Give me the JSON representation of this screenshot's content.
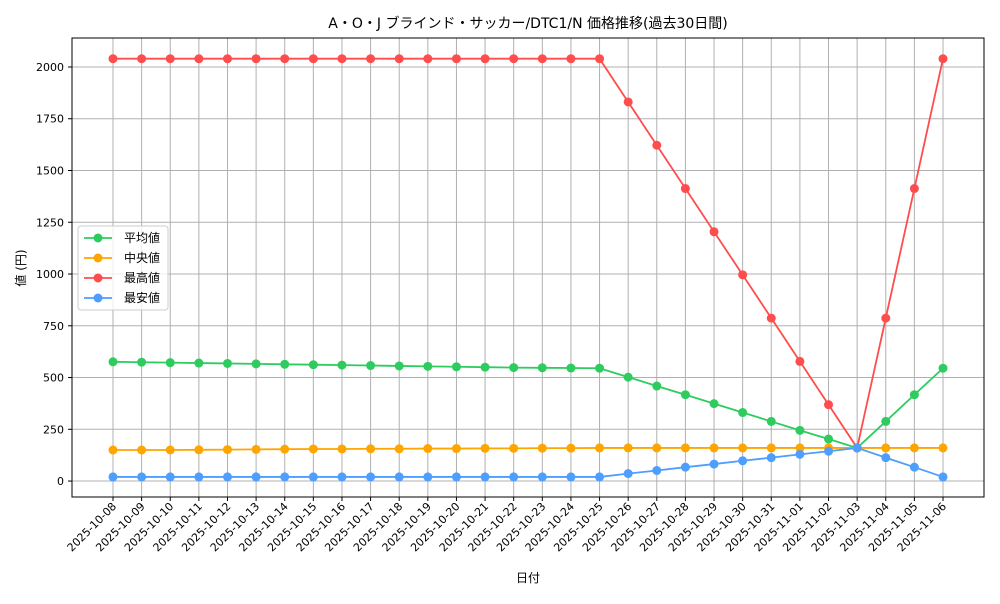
{
  "chart_data": {
    "type": "line",
    "title": "A・O・J ブラインド・サッカー/DTC1/N 価格推移(過去30日間)",
    "xlabel": "日付",
    "ylabel": "値 (円)",
    "ylim": [
      -77,
      2140
    ],
    "yticks": [
      0,
      250,
      500,
      750,
      1000,
      1250,
      1500,
      1750,
      2000
    ],
    "grid": true,
    "legend_position": "center-left",
    "x": [
      "2025-10-08",
      "2025-10-09",
      "2025-10-10",
      "2025-10-11",
      "2025-10-12",
      "2025-10-13",
      "2025-10-14",
      "2025-10-15",
      "2025-10-16",
      "2025-10-17",
      "2025-10-18",
      "2025-10-19",
      "2025-10-20",
      "2025-10-21",
      "2025-10-22",
      "2025-10-23",
      "2025-10-24",
      "2025-10-25",
      "2025-10-26",
      "2025-10-27",
      "2025-10-28",
      "2025-10-29",
      "2025-10-30",
      "2025-10-31",
      "2025-11-01",
      "2025-11-02",
      "2025-11-03",
      "2025-11-04",
      "2025-11-05",
      "2025-11-06"
    ],
    "series": [
      {
        "name": "平均値",
        "color": "#2ecc5f",
        "values": [
          576,
          574,
          572,
          570,
          568,
          566,
          564,
          562,
          560,
          558,
          556,
          554,
          552,
          550,
          548,
          547,
          546,
          545,
          502,
          459,
          417,
          374,
          331,
          288,
          245,
          203,
          160,
          288,
          417,
          545
        ]
      },
      {
        "name": "中央値",
        "color": "#ffa500",
        "values": [
          150,
          150,
          150,
          151,
          152,
          153,
          154,
          155,
          155,
          156,
          156,
          157,
          157,
          158,
          158,
          159,
          159,
          160,
          160,
          160,
          160,
          160,
          160,
          160,
          160,
          160,
          160,
          160,
          160,
          160
        ]
      },
      {
        "name": "最高値",
        "color": "#ff4d4d",
        "values": [
          2040,
          2040,
          2040,
          2040,
          2040,
          2040,
          2040,
          2040,
          2040,
          2040,
          2040,
          2040,
          2040,
          2040,
          2040,
          2040,
          2040,
          2040,
          1831,
          1622,
          1413,
          1204,
          996,
          787,
          578,
          369,
          160,
          787,
          1413,
          2040
        ]
      },
      {
        "name": "最安値",
        "color": "#4d9eff",
        "values": [
          20,
          20,
          20,
          20,
          20,
          20,
          20,
          20,
          20,
          20,
          20,
          20,
          20,
          20,
          20,
          20,
          20,
          20,
          36,
          51,
          67,
          82,
          98,
          113,
          129,
          144,
          160,
          113,
          67,
          20
        ]
      }
    ]
  }
}
